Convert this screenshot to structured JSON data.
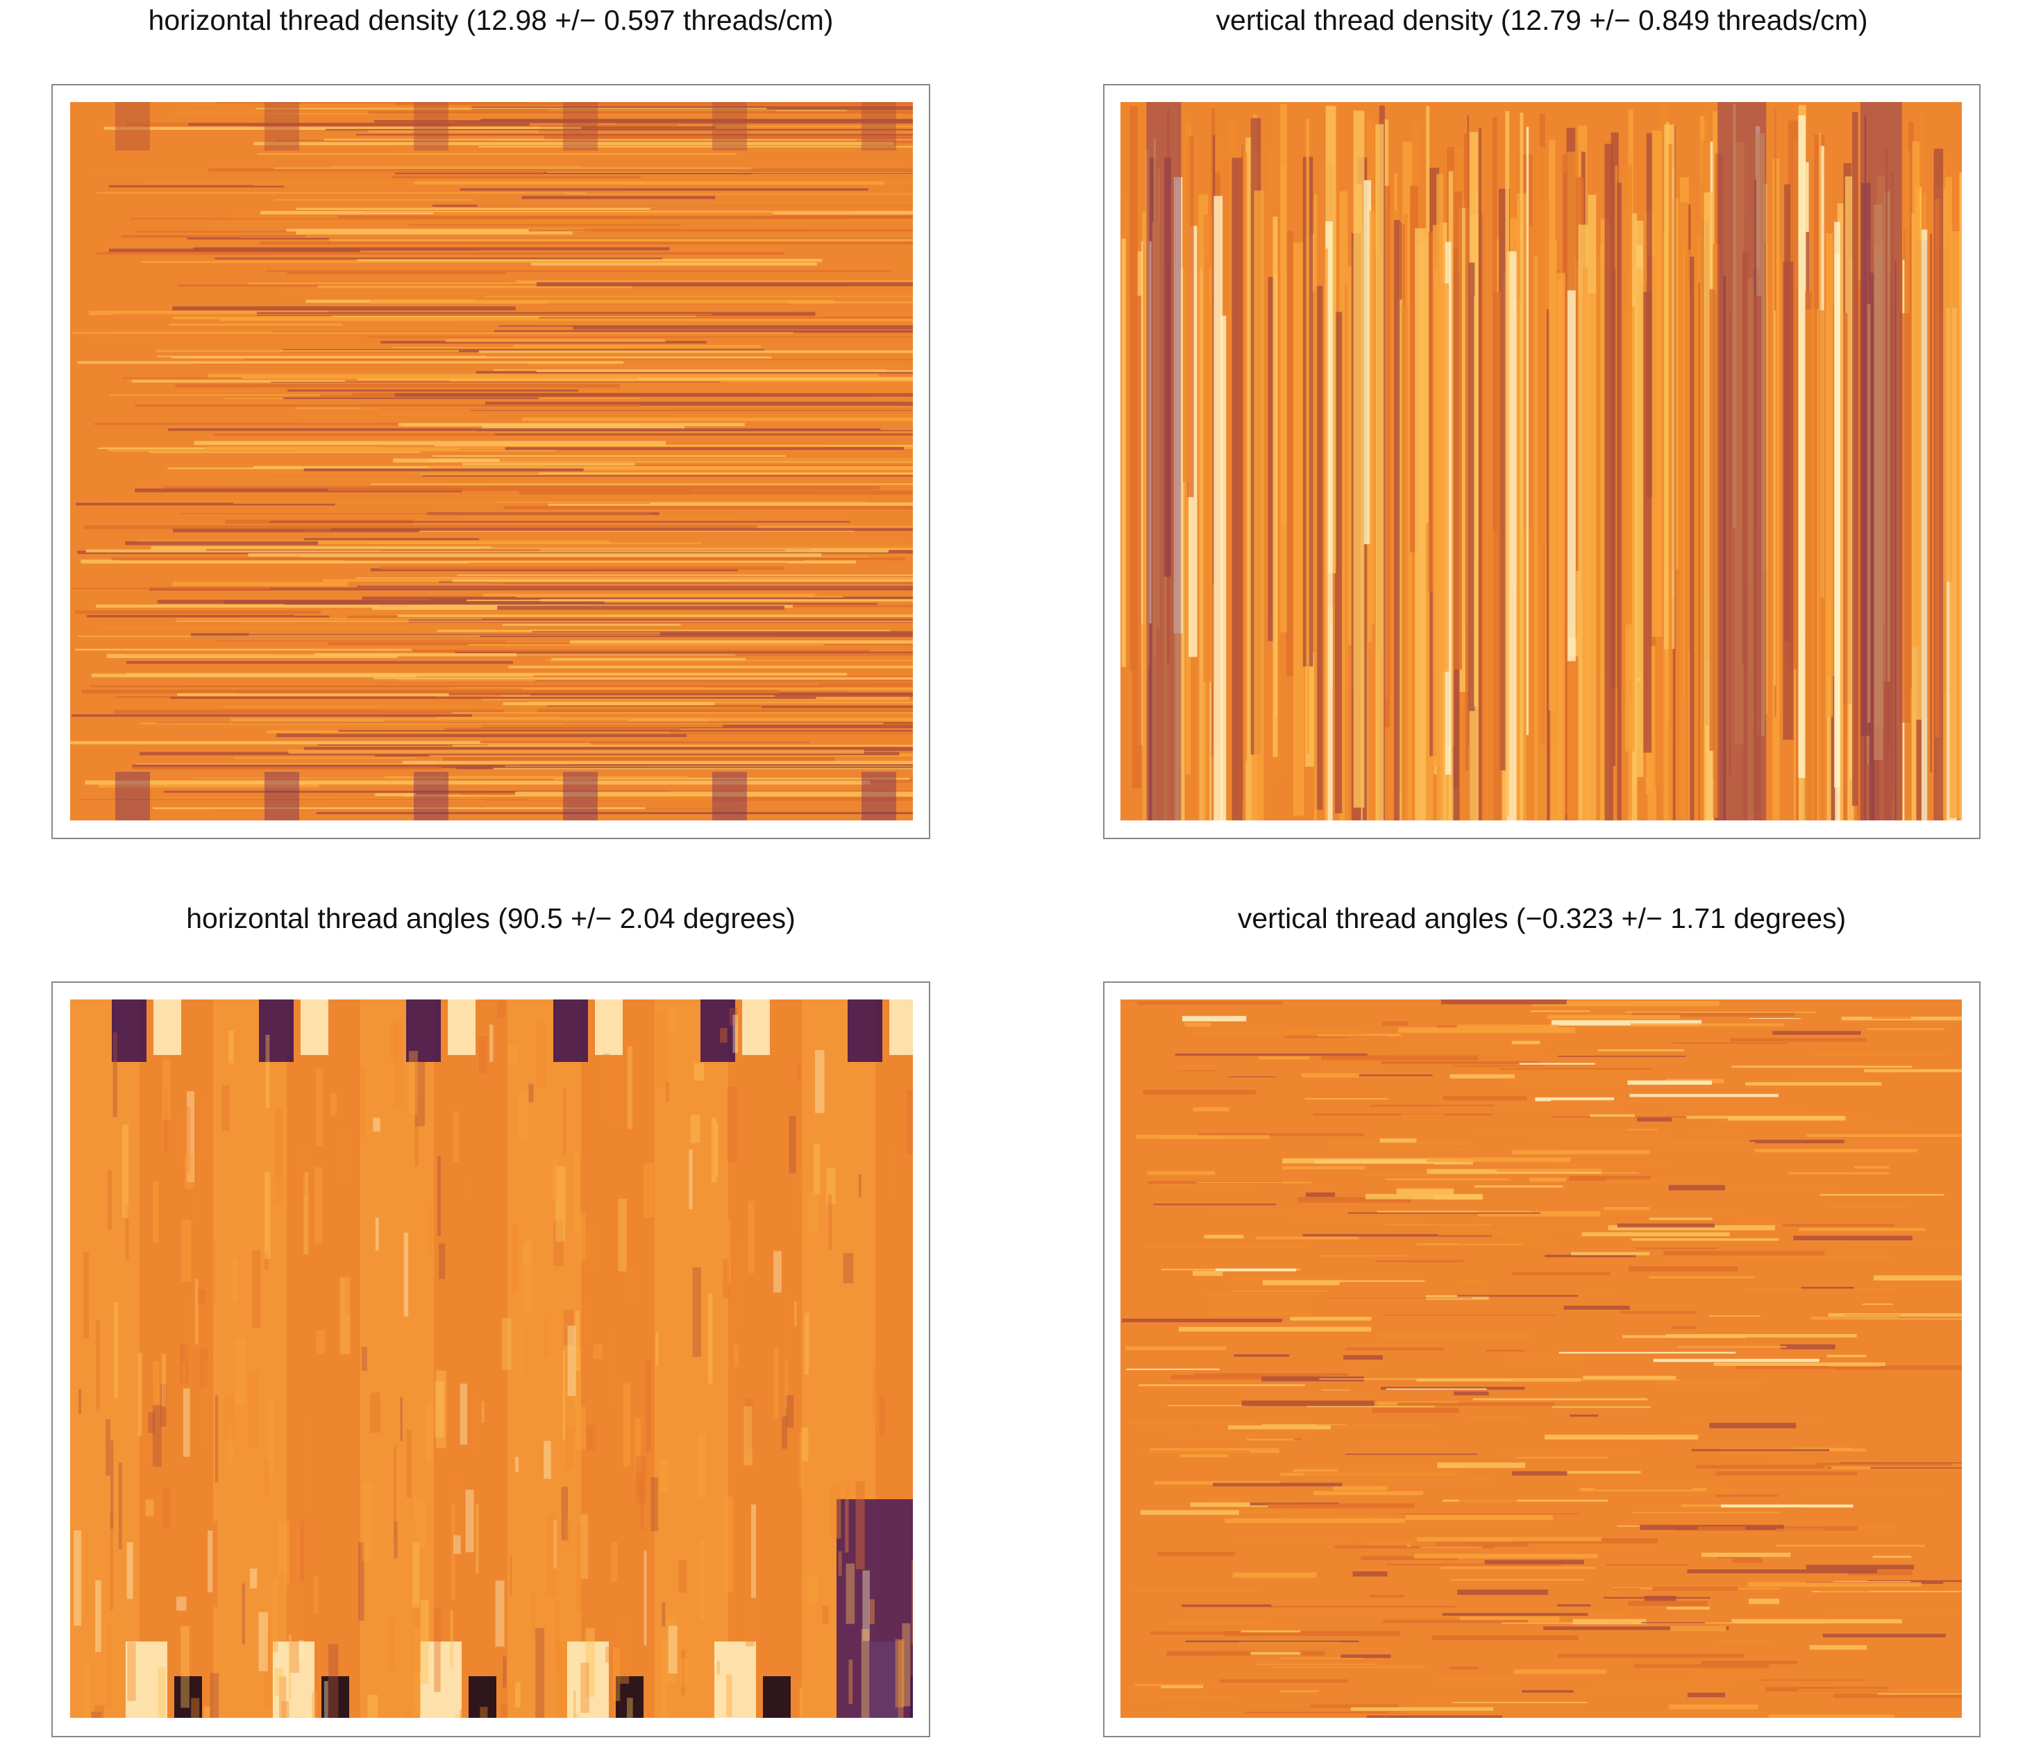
{
  "panels": [
    {
      "title": "horizontal thread density (12.98 +/− 0.597 threads/cm)"
    },
    {
      "title": "vertical thread density (12.79 +/− 0.849 threads/cm)"
    },
    {
      "title": "horizontal thread angles (90.5 +/− 2.04 degrees)"
    },
    {
      "title": "vertical thread angles (−0.323 +/− 1.71 degrees)"
    }
  ]
}
